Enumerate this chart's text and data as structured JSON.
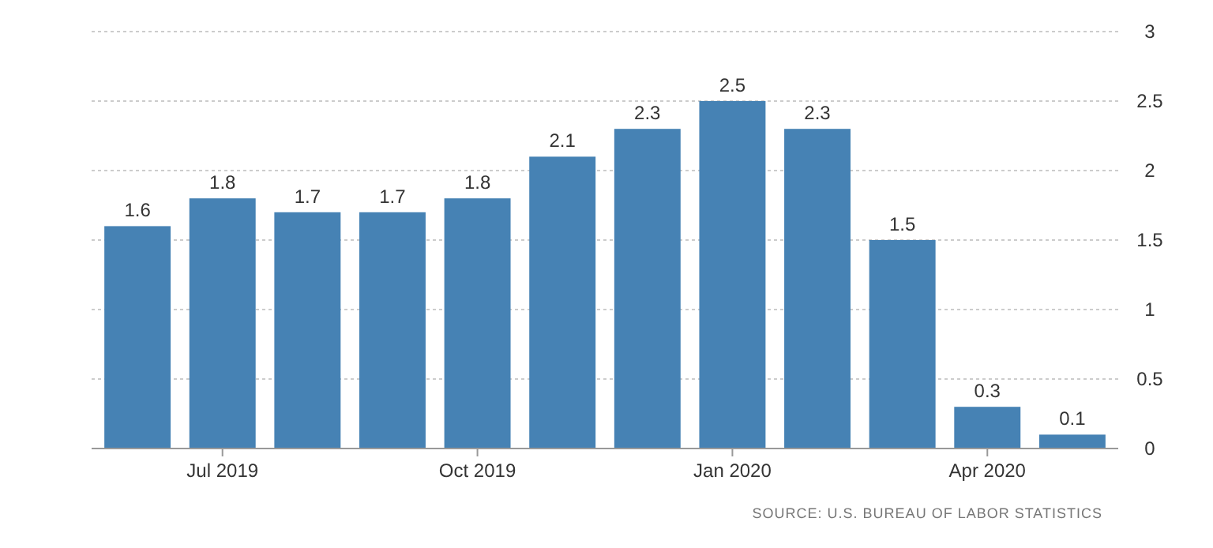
{
  "chart_data": {
    "type": "bar",
    "categories": [
      null,
      "Jul 2019",
      null,
      null,
      "Oct 2019",
      null,
      null,
      "Jan 2020",
      null,
      null,
      "Apr 2020",
      null
    ],
    "values": [
      1.6,
      1.8,
      1.7,
      1.7,
      1.8,
      2.1,
      2.3,
      2.5,
      2.3,
      1.5,
      0.3,
      0.1
    ],
    "color": "#4682b4",
    "ylim": [
      0,
      3
    ],
    "yticks": [
      0,
      0.5,
      1,
      1.5,
      2,
      2.5,
      3
    ],
    "grid": "y",
    "data_labels": true,
    "annotations": [
      "SOURCE: U.S. BUREAU OF LABOR STATISTICS"
    ]
  }
}
